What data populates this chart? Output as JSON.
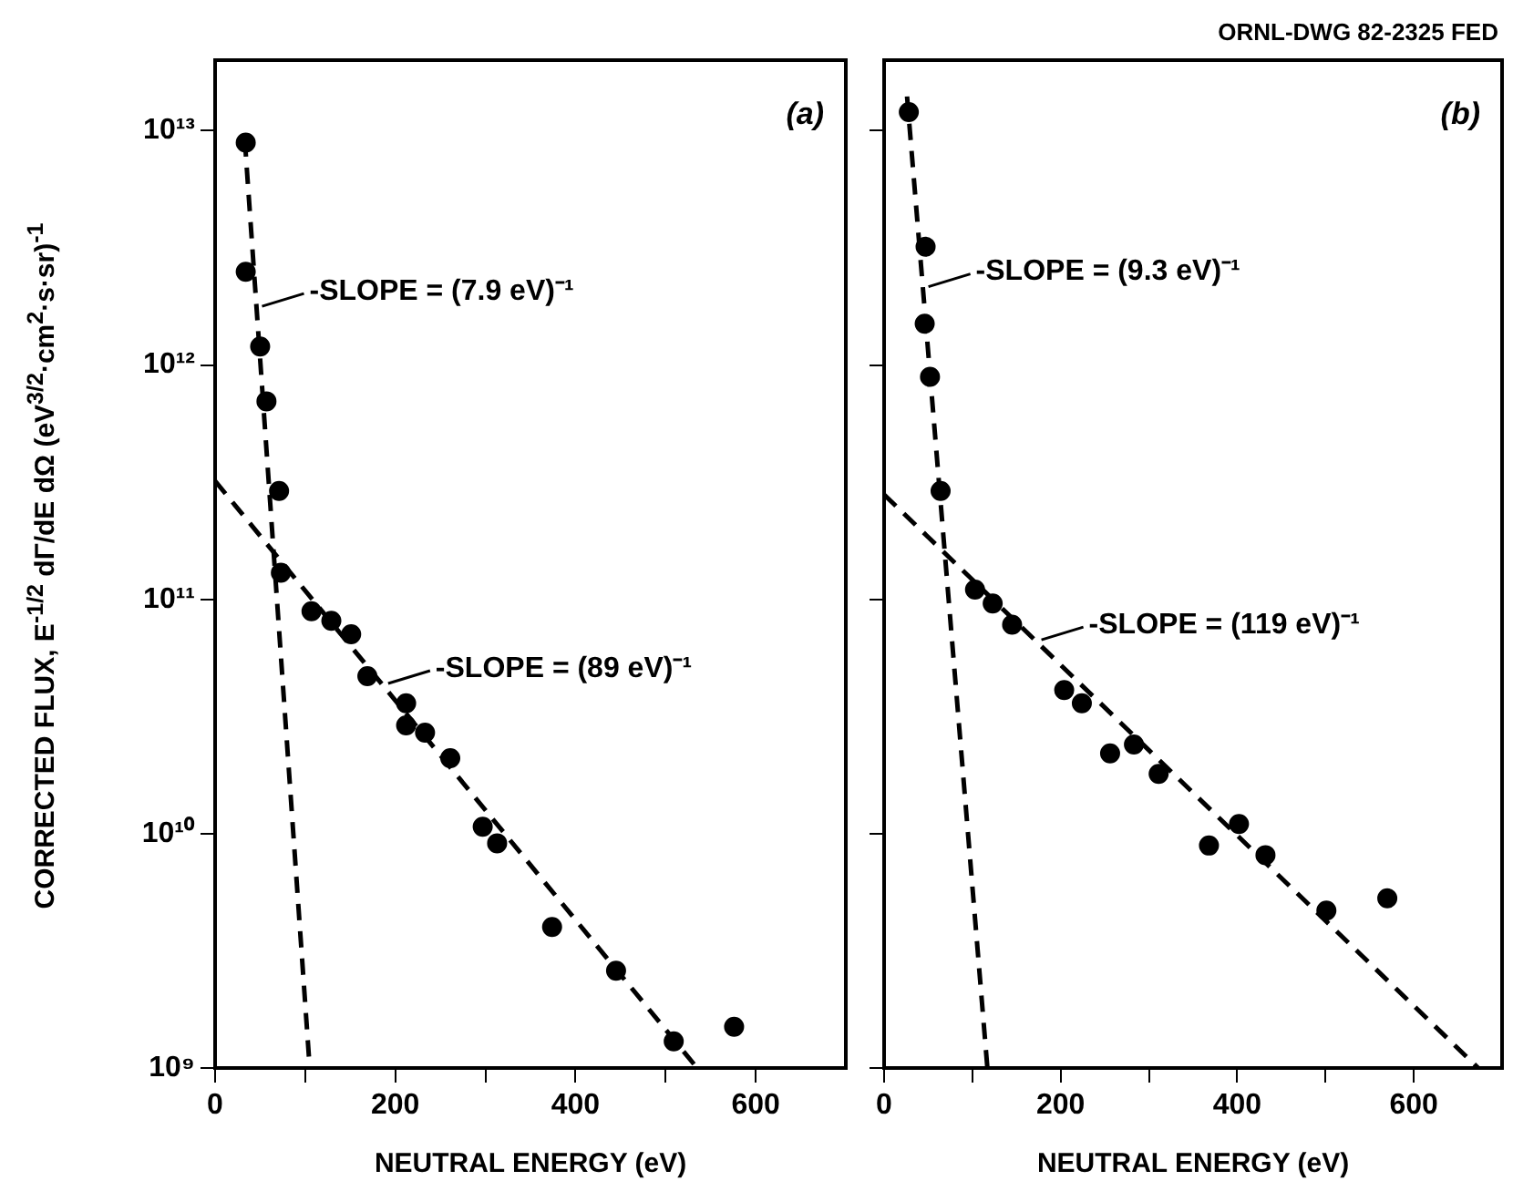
{
  "chart_data": [
    {
      "type": "scatter",
      "title": "(a)",
      "xlabel": "NEUTRAL ENERGY (eV)",
      "ylabel": "CORRECTED FLUX, E$^{-1/2}$ dΓ/dE dΩ (eV$^{3/2}$·cm$^{2}$·s·sr)$^{-1}$",
      "log": "y",
      "grid": false,
      "legend": false,
      "xlim": [
        0,
        700
      ],
      "xticks": [
        0,
        {
          "value": 100,
          "label": null
        },
        200,
        {
          "value": 300,
          "label": null
        },
        400,
        {
          "value": 500,
          "label": null
        },
        600
      ],
      "ylim": [
        1000000000.0,
        20000000000000.0
      ],
      "yticks": [
        {
          "value": 1000000000.0,
          "label": "10⁹"
        },
        {
          "value": 10000000000.0,
          "label": "10¹⁰"
        },
        {
          "value": 100000000000.0,
          "label": "10¹¹"
        },
        {
          "value": 1000000000000.0,
          "label": "10¹²"
        },
        {
          "value": 10000000000000.0,
          "label": "10¹³"
        }
      ],
      "series": [
        {
          "type": "scatter",
          "color": "#000000",
          "marker": "circle",
          "x": [
            34,
            34,
            50,
            57,
            71,
            73,
            107,
            129,
            151,
            169,
            212,
            212,
            233,
            261,
            297,
            313,
            374,
            445,
            509,
            576
          ],
          "values": [
            8900000000000.0,
            2500000000000.0,
            1200000000000.0,
            700000000000.0,
            290000000000.0,
            130000000000.0,
            89000000000.0,
            81000000000.0,
            71000000000.0,
            47000000000.0,
            36000000000.0,
            29000000000.0,
            27000000000.0,
            21000000000.0,
            10700000000.0,
            9100000000.0,
            4000000000.0,
            2600000000.0,
            1300000000.0,
            1500000000.0
          ]
        },
        {
          "type": "line",
          "color": "#000000",
          "marker": "none",
          "line_style": "dashed",
          "x": [
            33,
            105
          ],
          "values": [
            9100000000000.0,
            1000000000.0
          ]
        },
        {
          "type": "line",
          "color": "#000000",
          "marker": "none",
          "line_style": "dashed",
          "x": [
            0,
            535
          ],
          "values": [
            320000000000.0,
            1000000000.0
          ]
        }
      ],
      "annotations": [
        {
          "text": "-SLOPE = (7.9 eV)⁻¹",
          "x": 46,
          "y": 1750000000000.0
        },
        {
          "text": "-SLOPE = (89 eV)⁻¹",
          "x": 186,
          "y": 43000000000.0
        }
      ]
    },
    {
      "type": "scatter",
      "title": "(b)",
      "xlabel": "NEUTRAL ENERGY (eV)",
      "log": "y",
      "grid": false,
      "legend": false,
      "tick_labels": "x",
      "xlim": [
        0,
        700
      ],
      "xticks": [
        0,
        {
          "value": 100,
          "label": null
        },
        200,
        {
          "value": 300,
          "label": null
        },
        400,
        {
          "value": 500,
          "label": null
        },
        600
      ],
      "ylim": [
        1000000000.0,
        20000000000000.0
      ],
      "yticks": [
        {
          "value": 1000000000.0,
          "label": null
        },
        {
          "value": 10000000000.0,
          "label": null
        },
        {
          "value": 100000000000.0,
          "label": null
        },
        {
          "value": 1000000000000.0,
          "label": null
        },
        {
          "value": 10000000000000.0,
          "label": null
        }
      ],
      "series": [
        {
          "type": "scatter",
          "color": "#000000",
          "marker": "circle",
          "x": [
            28,
            47,
            46,
            52,
            64,
            103,
            123,
            145,
            204,
            224,
            256,
            283,
            311,
            368,
            402,
            432,
            501,
            570
          ],
          "values": [
            12000000000000.0,
            3200000000000.0,
            1500000000000.0,
            890000000000.0,
            290000000000.0,
            110000000000.0,
            96000000000.0,
            78000000000.0,
            41000000000.0,
            36000000000.0,
            22000000000.0,
            24000000000.0,
            18000000000.0,
            8900000000.0,
            11000000000.0,
            8100000000.0,
            4700000000.0,
            5300000000.0
          ]
        },
        {
          "type": "line",
          "color": "#000000",
          "marker": "none",
          "line_style": "dashed",
          "x": [
            26,
            117
          ],
          "values": [
            14000000000000.0,
            1000000000.0
          ]
        },
        {
          "type": "line",
          "color": "#000000",
          "marker": "none",
          "line_style": "dashed",
          "x": [
            0,
            673
          ],
          "values": [
            280000000000.0,
            1000000000.0
          ]
        }
      ],
      "annotations": [
        "ORNL-DWG 82-2325 FED",
        {
          "text": "-SLOPE = (9.3 eV)⁻¹",
          "x": 44,
          "y": 2120000000000.0
        },
        {
          "text": "-SLOPE = (119 eV)⁻¹",
          "x": 172,
          "y": 66000000000.0
        }
      ]
    }
  ]
}
